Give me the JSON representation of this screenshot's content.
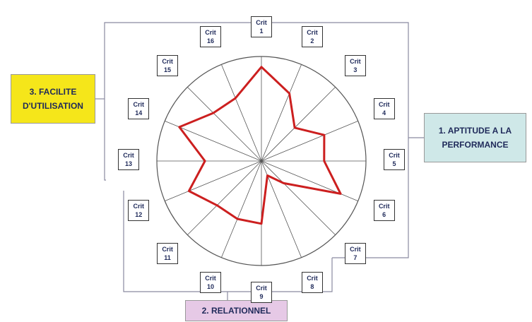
{
  "chart_data": {
    "type": "radar",
    "categories": [
      "Crit 1",
      "Crit 2",
      "Crit 3",
      "Crit 4",
      "Crit 5",
      "Crit 6",
      "Crit 7",
      "Crit 8",
      "Crit 9",
      "Crit 10",
      "Crit 11",
      "Crit 12",
      "Crit 13",
      "Crit 14",
      "Crit 15",
      "Crit 16"
    ],
    "values": [
      0.9,
      0.7,
      0.45,
      0.65,
      0.6,
      0.82,
      0.3,
      0.15,
      0.6,
      0.6,
      0.6,
      0.75,
      0.54,
      0.85,
      0.65,
      0.65
    ],
    "rlim": [
      0,
      1
    ],
    "color": "#cc1f1f",
    "groups": [
      "1. APTITUDE A LA PERFORMANCE",
      "2. RELATIONNEL",
      "3. FACILITE D'UTILISATION"
    ]
  }
}
